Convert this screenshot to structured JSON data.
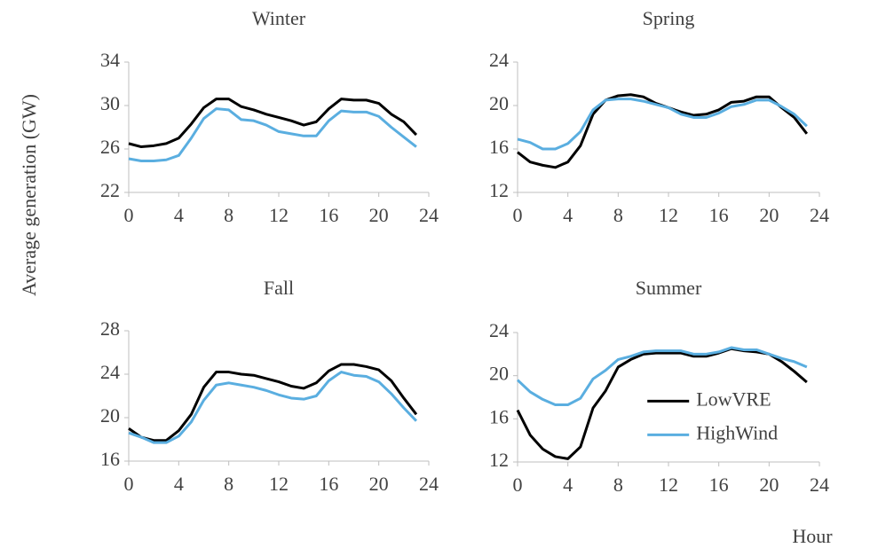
{
  "ylabel": "Average generation (GW)",
  "xlabel": "Hour",
  "chart_data": [
    {
      "type": "line",
      "title": "Winter",
      "x": [
        0,
        1,
        2,
        3,
        4,
        5,
        6,
        7,
        8,
        9,
        10,
        11,
        12,
        13,
        14,
        15,
        16,
        17,
        18,
        19,
        20,
        21,
        22,
        23
      ],
      "xlim": [
        0,
        24
      ],
      "xticks": [
        0,
        4,
        8,
        12,
        16,
        20,
        24
      ],
      "ylim": [
        22,
        34
      ],
      "yticks": [
        22,
        26,
        30,
        34
      ],
      "series": [
        {
          "color": "#000000",
          "values": [
            26.5,
            26.2,
            26.3,
            26.5,
            27.0,
            28.3,
            29.8,
            30.6,
            30.6,
            29.9,
            29.6,
            29.2,
            28.9,
            28.6,
            28.2,
            28.5,
            29.7,
            30.6,
            30.5,
            30.5,
            30.2,
            29.2,
            28.5,
            27.3
          ]
        },
        {
          "color": "#5aaee0",
          "values": [
            25.1,
            24.9,
            24.9,
            25.0,
            25.4,
            27.0,
            28.8,
            29.7,
            29.6,
            28.7,
            28.6,
            28.2,
            27.6,
            27.4,
            27.2,
            27.2,
            28.6,
            29.5,
            29.4,
            29.4,
            29.0,
            28.0,
            27.1,
            26.2
          ]
        }
      ]
    },
    {
      "type": "line",
      "title": "Spring",
      "x": [
        0,
        1,
        2,
        3,
        4,
        5,
        6,
        7,
        8,
        9,
        10,
        11,
        12,
        13,
        14,
        15,
        16,
        17,
        18,
        19,
        20,
        21,
        22,
        23
      ],
      "xlim": [
        0,
        24
      ],
      "xticks": [
        0,
        4,
        8,
        12,
        16,
        20,
        24
      ],
      "ylim": [
        12,
        24
      ],
      "yticks": [
        12,
        16,
        20,
        24
      ],
      "series": [
        {
          "color": "#000000",
          "values": [
            15.7,
            14.8,
            14.5,
            14.3,
            14.8,
            16.3,
            19.2,
            20.5,
            20.9,
            21.0,
            20.8,
            20.2,
            19.8,
            19.4,
            19.1,
            19.2,
            19.6,
            20.3,
            20.4,
            20.8,
            20.8,
            19.8,
            18.9,
            17.4
          ]
        },
        {
          "color": "#5aaee0",
          "values": [
            16.9,
            16.6,
            16.0,
            16.0,
            16.5,
            17.6,
            19.6,
            20.5,
            20.6,
            20.6,
            20.4,
            20.1,
            19.8,
            19.2,
            18.9,
            18.9,
            19.3,
            19.9,
            20.1,
            20.5,
            20.5,
            19.9,
            19.2,
            18.1
          ]
        }
      ]
    },
    {
      "type": "line",
      "title": "Fall",
      "x": [
        0,
        1,
        2,
        3,
        4,
        5,
        6,
        7,
        8,
        9,
        10,
        11,
        12,
        13,
        14,
        15,
        16,
        17,
        18,
        19,
        20,
        21,
        22,
        23
      ],
      "xlim": [
        0,
        24
      ],
      "xticks": [
        0,
        4,
        8,
        12,
        16,
        20,
        24
      ],
      "ylim": [
        16,
        28
      ],
      "yticks": [
        16,
        20,
        24,
        28
      ],
      "series": [
        {
          "color": "#000000",
          "values": [
            19.0,
            18.2,
            17.9,
            17.9,
            18.8,
            20.3,
            22.8,
            24.2,
            24.2,
            24.0,
            23.9,
            23.6,
            23.3,
            22.9,
            22.7,
            23.2,
            24.3,
            24.9,
            24.9,
            24.7,
            24.4,
            23.4,
            21.8,
            20.3
          ]
        },
        {
          "color": "#5aaee0",
          "values": [
            18.6,
            18.2,
            17.7,
            17.7,
            18.3,
            19.6,
            21.6,
            23.0,
            23.2,
            23.0,
            22.8,
            22.5,
            22.1,
            21.8,
            21.7,
            22.0,
            23.4,
            24.2,
            23.9,
            23.8,
            23.3,
            22.2,
            20.9,
            19.7
          ]
        }
      ]
    },
    {
      "type": "line",
      "title": "Summer",
      "x": [
        0,
        1,
        2,
        3,
        4,
        5,
        6,
        7,
        8,
        9,
        10,
        11,
        12,
        13,
        14,
        15,
        16,
        17,
        18,
        19,
        20,
        21,
        22,
        23
      ],
      "xlim": [
        0,
        24
      ],
      "xticks": [
        0,
        4,
        8,
        12,
        16,
        20,
        24
      ],
      "ylim": [
        12,
        24
      ],
      "yticks": [
        12,
        16,
        20,
        24
      ],
      "legend": "lower right",
      "series": [
        {
          "name": "LowVRE",
          "color": "#000000",
          "values": [
            16.8,
            14.5,
            13.2,
            12.5,
            12.3,
            13.4,
            17.0,
            18.6,
            20.8,
            21.5,
            22.0,
            22.1,
            22.1,
            22.1,
            21.8,
            21.8,
            22.1,
            22.5,
            22.3,
            22.2,
            22.0,
            21.3,
            20.4,
            19.4
          ]
        },
        {
          "name": "HighWind",
          "color": "#5aaee0",
          "values": [
            19.6,
            18.5,
            17.8,
            17.3,
            17.3,
            17.9,
            19.7,
            20.5,
            21.5,
            21.8,
            22.2,
            22.3,
            22.3,
            22.3,
            22.0,
            22.0,
            22.2,
            22.6,
            22.4,
            22.4,
            22.0,
            21.6,
            21.3,
            20.8
          ]
        }
      ]
    }
  ]
}
